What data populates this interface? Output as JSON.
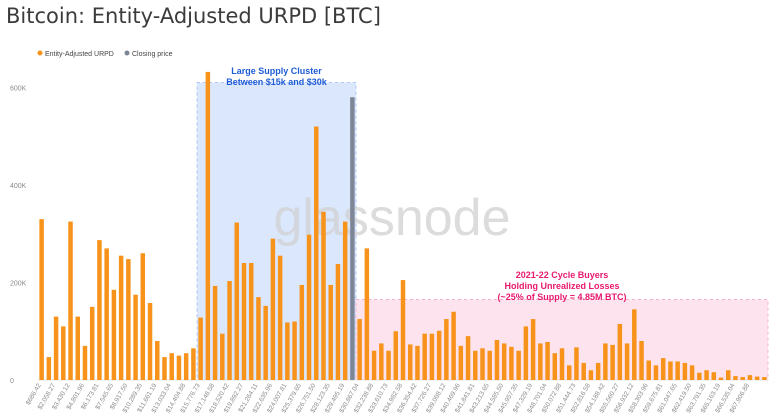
{
  "page_title": "Bitcoin: Entity-Adjusted URPD [BTC]",
  "watermark": "glassnode",
  "chart_data": {
    "type": "bar",
    "title": "Bitcoin: Entity-Adjusted URPD [BTC]",
    "xlabel": "",
    "ylabel": "",
    "ylim": [
      0,
      640000
    ],
    "yticks": [
      0,
      200000,
      400000,
      600000
    ],
    "ytick_labels": [
      "0",
      "200K",
      "400K",
      "600K"
    ],
    "legend": {
      "position": "top-left",
      "entries": [
        {
          "label": "Entity-Adjusted URPD",
          "color": "#f7931a"
        },
        {
          "label": "Closing price",
          "color": "#7d8696"
        }
      ]
    },
    "xtick_labels": [
      "$686.42",
      "$2,058.27",
      "$3,430.12",
      "$4,801.96",
      "$6,173.81",
      "$7,545.65",
      "$8,917.50",
      "$10,289.35",
      "$11,661.19",
      "$13,033.04",
      "$14,404.88",
      "$15,776.73",
      "$17,148.58",
      "$18,520.42",
      "$19,892.27",
      "$21,264.11",
      "$22,635.96",
      "$24,007.81",
      "$25,379.65",
      "$26,751.50",
      "$28,123.35",
      "$29,495.19",
      "$30,867.04",
      "$32,238.88",
      "$33,610.73",
      "$34,982.58",
      "$36,354.42",
      "$37,726.27",
      "$39,098.12",
      "$40,469.96",
      "$41,841.81",
      "$43,213.65",
      "$44,585.50",
      "$45,957.35",
      "$47,329.19",
      "$48,701.04",
      "$50,072.88",
      "$51,444.73",
      "$52,816.58",
      "$54,188.42",
      "$55,560.27",
      "$56,932.12",
      "$58,303.96",
      "$59,675.81",
      "$61,047.65",
      "$62,419.50",
      "$63,791.35",
      "$65,163.19",
      "$66,535.04",
      "$67,906.88"
    ],
    "series": [
      {
        "name": "Entity-Adjusted URPD",
        "color": "#f7931a",
        "values": [
          330000,
          47000,
          130000,
          110000,
          325000,
          130000,
          70000,
          150000,
          287000,
          270000,
          185000,
          255000,
          248000,
          175000,
          260000,
          158000,
          80000,
          47000,
          55000,
          50000,
          55000,
          65000,
          128000,
          632000,
          193000,
          95000,
          203000,
          323000,
          240000,
          240000,
          170000,
          152000,
          290000,
          255000,
          118000,
          120000,
          195000,
          298000,
          520000,
          345000,
          195000,
          238000,
          325000,
          580000,
          125000,
          270000,
          60000,
          75000,
          60000,
          100000,
          205000,
          73000,
          70000,
          95000,
          95000,
          101000,
          125000,
          140000,
          70000,
          90000,
          60000,
          65000,
          60000,
          82000,
          75000,
          68000,
          60000,
          110000,
          125000,
          75000,
          78000,
          55000,
          65000,
          30000,
          67000,
          35000,
          20000,
          35000,
          75000,
          72000,
          115000,
          75000,
          145000,
          80000,
          40000,
          30000,
          45000,
          38000,
          38000,
          35000,
          30000,
          15000,
          20000,
          16000,
          5000,
          20000,
          8000,
          6000,
          10000,
          7000,
          6000
        ]
      }
    ],
    "closing_price_bar_index": 43,
    "annotations": [
      {
        "text": "Large Supply Cluster\nBetween $15k and $30k",
        "color": "#1e5bd6",
        "region": {
          "from_label": "$15,776.73",
          "to_label": "$30,867.04"
        }
      },
      {
        "text": "2021-22 Cycle Buyers\nHolding Unrealized Losses\n(~25% of Supply = 4.85M BTC)",
        "color": "#e8196e",
        "region": {
          "from_label": "$30,867.04",
          "to_label": "$67,906.88"
        }
      }
    ]
  }
}
